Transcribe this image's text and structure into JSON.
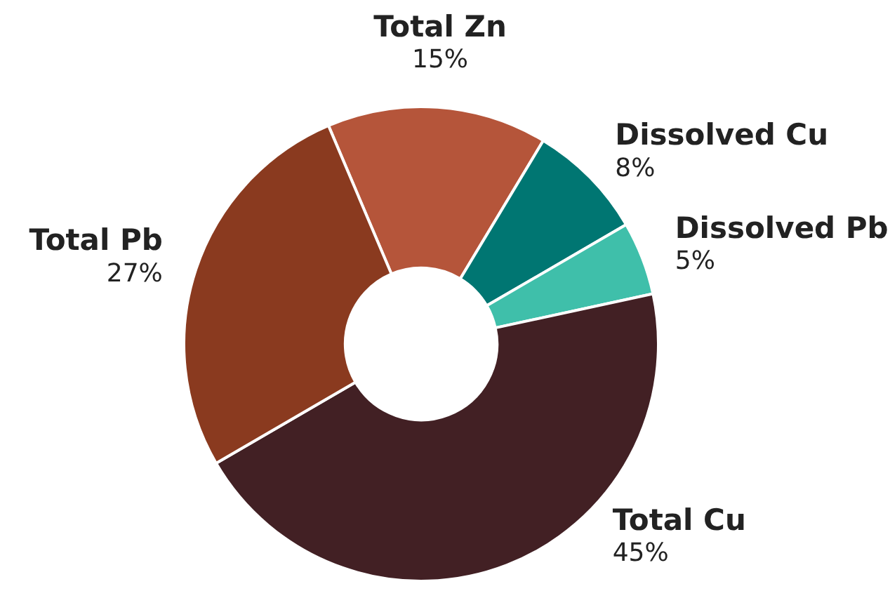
{
  "chart_data": {
    "type": "donut",
    "categories": [
      "Total Zn",
      "Dissolved Cu",
      "Dissolved Pb",
      "Total Cu",
      "Total Pb"
    ],
    "values": [
      15,
      8,
      5,
      45,
      27
    ],
    "value_labels": [
      "15%",
      "8%",
      "5%",
      "45%",
      "27%"
    ],
    "colors": [
      "#b5553a",
      "#007672",
      "#3fbfaa",
      "#422024",
      "#8a3a1f"
    ],
    "legend": false
  }
}
